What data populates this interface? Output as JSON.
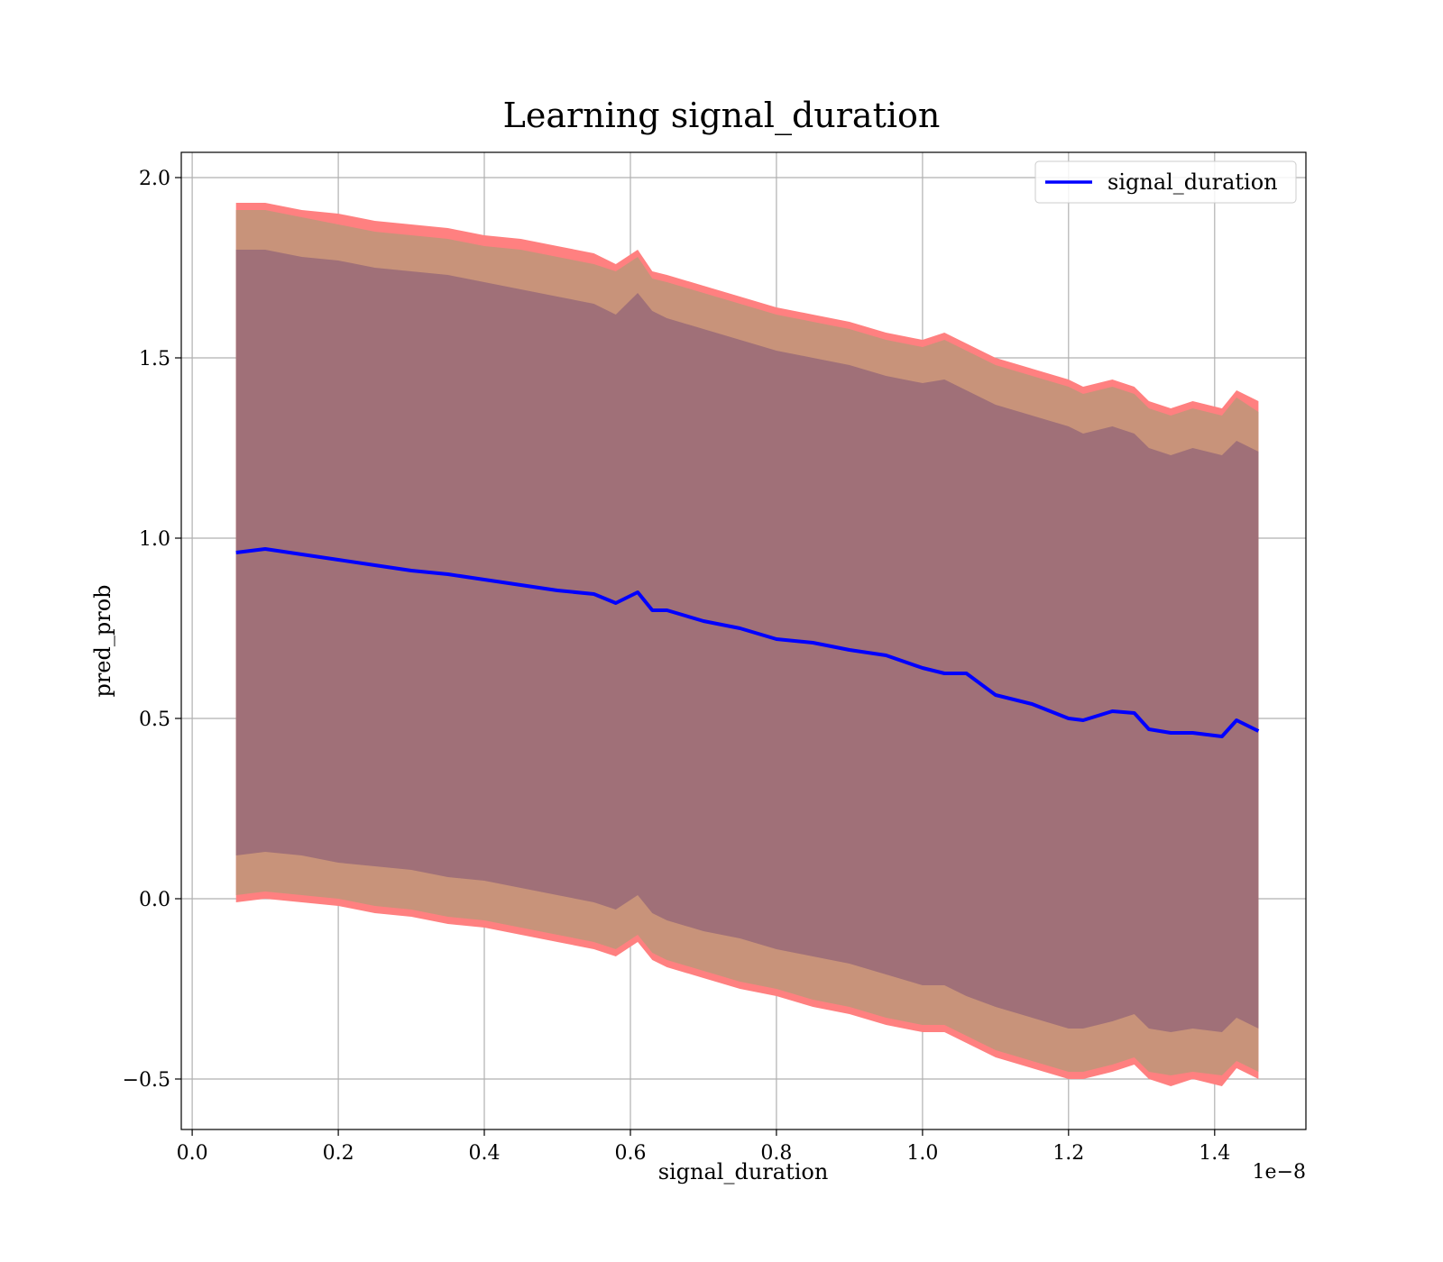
{
  "chart_data": {
    "type": "line",
    "title": "Learning signal_duration",
    "xlabel": "signal_duration",
    "ylabel": "pred_prob",
    "x_offset_text": "1e−8",
    "xlim": [
      -0.015,
      1.525
    ],
    "ylim": [
      -0.64,
      2.07
    ],
    "x_ticks": [
      0.0,
      0.2,
      0.4,
      0.6,
      0.8,
      1.0,
      1.2,
      1.4
    ],
    "x_tick_labels": [
      "0.0",
      "0.2",
      "0.4",
      "0.6",
      "0.8",
      "1.0",
      "1.2",
      "1.4"
    ],
    "y_ticks": [
      -0.5,
      0.0,
      0.5,
      1.0,
      1.5,
      2.0
    ],
    "y_tick_labels": [
      "−0.5",
      "0.0",
      "0.5",
      "1.0",
      "1.5",
      "2.0"
    ],
    "grid": true,
    "legend_position": "top-right",
    "colors": {
      "line": "#0000ff",
      "band_outer": "#ff8080",
      "band_middle": "#c8937a",
      "band_inner": "#a07078",
      "grid": "#b0b0b0"
    },
    "series": [
      {
        "name": "signal_duration",
        "x": [
          0.06,
          0.1,
          0.15,
          0.2,
          0.25,
          0.3,
          0.35,
          0.4,
          0.45,
          0.5,
          0.55,
          0.58,
          0.61,
          0.63,
          0.65,
          0.7,
          0.75,
          0.8,
          0.85,
          0.9,
          0.95,
          1.0,
          1.03,
          1.06,
          1.1,
          1.15,
          1.2,
          1.22,
          1.26,
          1.29,
          1.31,
          1.34,
          1.37,
          1.41,
          1.43,
          1.46
        ],
        "y": [
          0.96,
          0.97,
          0.955,
          0.94,
          0.925,
          0.91,
          0.9,
          0.885,
          0.87,
          0.855,
          0.845,
          0.82,
          0.85,
          0.8,
          0.8,
          0.77,
          0.75,
          0.72,
          0.71,
          0.69,
          0.675,
          0.64,
          0.625,
          0.625,
          0.565,
          0.54,
          0.5,
          0.495,
          0.52,
          0.515,
          0.47,
          0.46,
          0.46,
          0.45,
          0.495,
          0.465
        ]
      }
    ],
    "bands": [
      {
        "role": "outer",
        "upper": [
          1.93,
          1.93,
          1.91,
          1.9,
          1.88,
          1.87,
          1.86,
          1.84,
          1.83,
          1.81,
          1.79,
          1.76,
          1.8,
          1.74,
          1.73,
          1.7,
          1.67,
          1.64,
          1.62,
          1.6,
          1.57,
          1.55,
          1.57,
          1.54,
          1.5,
          1.47,
          1.44,
          1.42,
          1.44,
          1.42,
          1.38,
          1.36,
          1.38,
          1.36,
          1.41,
          1.38
        ],
        "lower": [
          -0.01,
          0.0,
          -0.01,
          -0.02,
          -0.04,
          -0.05,
          -0.07,
          -0.08,
          -0.1,
          -0.12,
          -0.14,
          -0.16,
          -0.12,
          -0.17,
          -0.19,
          -0.22,
          -0.25,
          -0.27,
          -0.3,
          -0.32,
          -0.35,
          -0.37,
          -0.37,
          -0.4,
          -0.44,
          -0.47,
          -0.5,
          -0.5,
          -0.48,
          -0.46,
          -0.5,
          -0.52,
          -0.5,
          -0.52,
          -0.47,
          -0.5
        ]
      },
      {
        "role": "middle",
        "upper": [
          1.91,
          1.91,
          1.89,
          1.87,
          1.85,
          1.84,
          1.83,
          1.81,
          1.8,
          1.78,
          1.76,
          1.74,
          1.78,
          1.72,
          1.71,
          1.68,
          1.65,
          1.62,
          1.6,
          1.58,
          1.55,
          1.53,
          1.55,
          1.52,
          1.48,
          1.45,
          1.42,
          1.4,
          1.42,
          1.4,
          1.36,
          1.34,
          1.36,
          1.34,
          1.39,
          1.35
        ],
        "lower": [
          0.01,
          0.02,
          0.01,
          0.0,
          -0.02,
          -0.03,
          -0.05,
          -0.06,
          -0.08,
          -0.1,
          -0.12,
          -0.14,
          -0.1,
          -0.15,
          -0.17,
          -0.2,
          -0.23,
          -0.25,
          -0.28,
          -0.3,
          -0.33,
          -0.35,
          -0.35,
          -0.38,
          -0.42,
          -0.45,
          -0.48,
          -0.48,
          -0.46,
          -0.44,
          -0.48,
          -0.49,
          -0.48,
          -0.49,
          -0.45,
          -0.48
        ]
      },
      {
        "role": "inner",
        "upper": [
          1.8,
          1.8,
          1.78,
          1.77,
          1.75,
          1.74,
          1.73,
          1.71,
          1.69,
          1.67,
          1.65,
          1.62,
          1.68,
          1.63,
          1.61,
          1.58,
          1.55,
          1.52,
          1.5,
          1.48,
          1.45,
          1.43,
          1.44,
          1.41,
          1.37,
          1.34,
          1.31,
          1.29,
          1.31,
          1.29,
          1.25,
          1.23,
          1.25,
          1.23,
          1.27,
          1.24
        ],
        "lower": [
          0.12,
          0.13,
          0.12,
          0.1,
          0.09,
          0.08,
          0.06,
          0.05,
          0.03,
          0.01,
          -0.01,
          -0.03,
          0.01,
          -0.04,
          -0.06,
          -0.09,
          -0.11,
          -0.14,
          -0.16,
          -0.18,
          -0.21,
          -0.24,
          -0.24,
          -0.27,
          -0.3,
          -0.33,
          -0.36,
          -0.36,
          -0.34,
          -0.32,
          -0.36,
          -0.37,
          -0.36,
          -0.37,
          -0.33,
          -0.36
        ]
      }
    ]
  }
}
